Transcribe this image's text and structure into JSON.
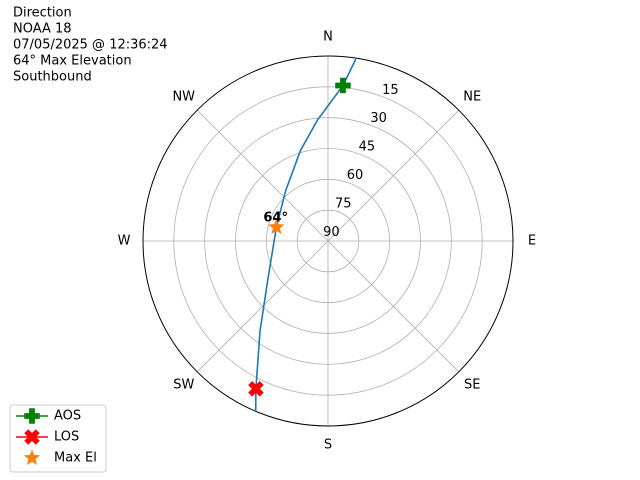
{
  "chart_data": {
    "type": "polar",
    "title_lines": [
      "Direction",
      "NOAA 18",
      "07/05/2025 @ 12:36:24",
      "64° Max Elevation",
      "Southbound"
    ],
    "thetaticks": [
      {
        "value": 0,
        "label": "N"
      },
      {
        "value": 45,
        "label": "NE"
      },
      {
        "value": 90,
        "label": "E"
      },
      {
        "value": 135,
        "label": "SE"
      },
      {
        "value": 180,
        "label": "S"
      },
      {
        "value": 225,
        "label": "SW"
      },
      {
        "value": 270,
        "label": "W"
      },
      {
        "value": 315,
        "label": "NW"
      }
    ],
    "ylim": [
      90,
      0
    ],
    "yticks": [
      90,
      75,
      60,
      45,
      30,
      15
    ],
    "grid": true,
    "path": {
      "color": "#1f77b4",
      "azimuth": [
        8.7,
        5.5,
        355,
        343,
        320,
        285,
        237,
        217,
        206,
        203
      ],
      "elevation": [
        0.5,
        14,
        31,
        44,
        58,
        64,
        55,
        35,
        10,
        0
      ]
    },
    "series": [
      {
        "name": "AOS",
        "color": "#008000",
        "marker": "plus",
        "azimuth": [
          5.5
        ],
        "elevation": [
          14
        ]
      },
      {
        "name": "LOS",
        "color": "#ff0000",
        "marker": "x",
        "azimuth": [
          206
        ],
        "elevation": [
          10
        ]
      },
      {
        "name": "Max El",
        "color": "#ff7f0e",
        "marker": "star",
        "azimuth": [
          285
        ],
        "elevation": [
          64
        ]
      }
    ],
    "annotation": "64°",
    "legend": "lower left"
  }
}
